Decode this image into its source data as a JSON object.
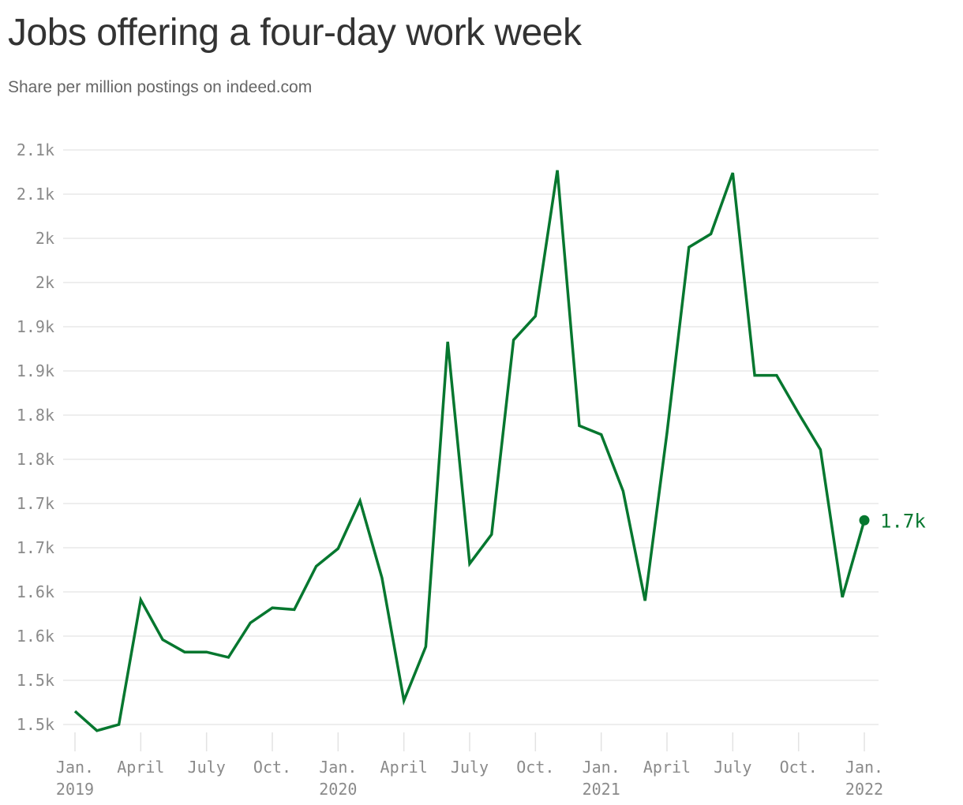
{
  "header": {
    "title": "Jobs offering a four-day work week",
    "subtitle": "Share per million postings on indeed.com"
  },
  "colors": {
    "line": "#06772f",
    "grid": "#e3e3e3",
    "tick": "#8a8a8a",
    "text": "#333333"
  },
  "chart_data": {
    "type": "line",
    "title": "Jobs offering a four-day work week",
    "subtitle": "Share per million postings on indeed.com",
    "xlabel": "",
    "ylabel": "",
    "grid": true,
    "x": [
      "2019-01",
      "2019-02",
      "2019-03",
      "2019-04",
      "2019-05",
      "2019-06",
      "2019-07",
      "2019-08",
      "2019-09",
      "2019-10",
      "2019-11",
      "2019-12",
      "2020-01",
      "2020-02",
      "2020-03",
      "2020-04",
      "2020-05",
      "2020-06",
      "2020-07",
      "2020-08",
      "2020-09",
      "2020-10",
      "2020-11",
      "2020-12",
      "2021-01",
      "2021-02",
      "2021-03",
      "2021-04",
      "2021-05",
      "2021-06",
      "2021-07",
      "2021-08",
      "2021-09",
      "2021-10",
      "2021-11",
      "2021-12",
      "2022-01"
    ],
    "series": [
      {
        "values": [
          1515,
          1493,
          1500,
          1641,
          1596,
          1582,
          1582,
          1576,
          1615,
          1632,
          1630,
          1679,
          1699,
          1753,
          1666,
          1527,
          1588,
          1933,
          1682,
          1715,
          1935,
          1962,
          2127,
          1838,
          1828,
          1764,
          1640,
          1830,
          2040,
          2055,
          2124,
          1895,
          1895,
          1852,
          1811,
          1644,
          1731
        ]
      }
    ],
    "ylim": [
      1475,
      2125
    ],
    "y_ticks": [
      {
        "value": 1500,
        "label": "1.5k"
      },
      {
        "value": 1550,
        "label": "1.5k"
      },
      {
        "value": 1600,
        "label": "1.6k"
      },
      {
        "value": 1650,
        "label": "1.6k"
      },
      {
        "value": 1700,
        "label": "1.7k"
      },
      {
        "value": 1750,
        "label": "1.7k"
      },
      {
        "value": 1800,
        "label": "1.8k"
      },
      {
        "value": 1850,
        "label": "1.8k"
      },
      {
        "value": 1900,
        "label": "1.9k"
      },
      {
        "value": 1950,
        "label": "1.9k"
      },
      {
        "value": 2000,
        "label": "2k"
      },
      {
        "value": 2050,
        "label": "2k"
      },
      {
        "value": 2100,
        "label": "2.1k"
      },
      {
        "value": 2150,
        "label": "2.1k"
      }
    ],
    "x_ticks": [
      {
        "at": "2019-01",
        "label": "Jan.",
        "sub": "2019"
      },
      {
        "at": "2019-04",
        "label": "April",
        "sub": ""
      },
      {
        "at": "2019-07",
        "label": "July",
        "sub": ""
      },
      {
        "at": "2019-10",
        "label": "Oct.",
        "sub": ""
      },
      {
        "at": "2020-01",
        "label": "Jan.",
        "sub": "2020"
      },
      {
        "at": "2020-04",
        "label": "April",
        "sub": ""
      },
      {
        "at": "2020-07",
        "label": "July",
        "sub": ""
      },
      {
        "at": "2020-10",
        "label": "Oct.",
        "sub": ""
      },
      {
        "at": "2021-01",
        "label": "Jan.",
        "sub": "2021"
      },
      {
        "at": "2021-04",
        "label": "April",
        "sub": ""
      },
      {
        "at": "2021-07",
        "label": "July",
        "sub": ""
      },
      {
        "at": "2021-10",
        "label": "Oct.",
        "sub": ""
      },
      {
        "at": "2022-01",
        "label": "Jan.",
        "sub": "2022"
      }
    ],
    "end_label": "1.7k"
  }
}
